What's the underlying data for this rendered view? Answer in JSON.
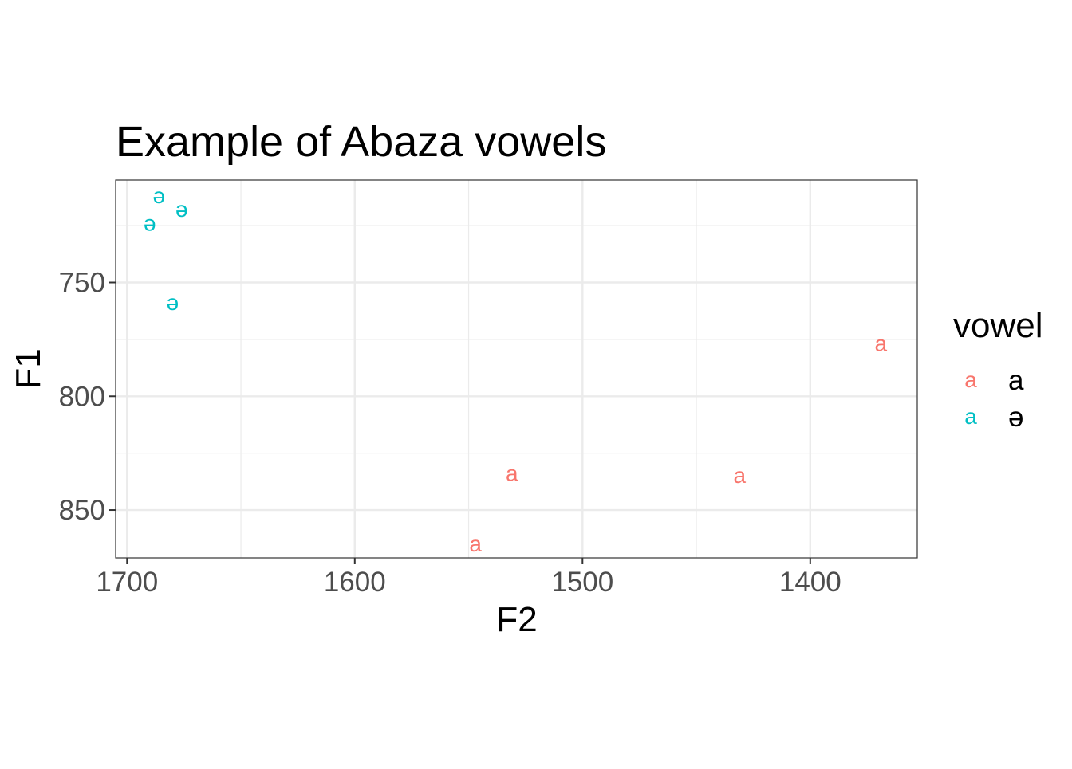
{
  "chart_data": {
    "type": "scatter",
    "title": "Example of Abaza vowels",
    "xlabel": "F2",
    "ylabel": "F1",
    "x_reversed": true,
    "y_reversed": true,
    "xlim": [
      1705,
      1353
    ],
    "ylim": [
      705,
      871
    ],
    "x_major_ticks": [
      1700,
      1600,
      1500,
      1400
    ],
    "x_minor_ticks": [
      1650,
      1550,
      1450
    ],
    "y_major_ticks": [
      750,
      800,
      850
    ],
    "y_minor_ticks": [
      725,
      775,
      825
    ],
    "grid": true,
    "legend_position": "right",
    "legend": {
      "title": "vowel",
      "key_glyph": "a",
      "items": [
        {
          "label": "a",
          "color": "#F8766D"
        },
        {
          "label": "ə",
          "color": "#00BFC4"
        }
      ]
    },
    "series": [
      {
        "label": "a",
        "color": "#F8766D",
        "points": [
          {
            "F2": 1369,
            "F1": 777
          },
          {
            "F2": 1531,
            "F1": 834
          },
          {
            "F2": 1431,
            "F1": 835
          },
          {
            "F2": 1547,
            "F1": 865
          }
        ]
      },
      {
        "label": "ə",
        "color": "#00BFC4",
        "points": [
          {
            "F2": 1686,
            "F1": 712
          },
          {
            "F2": 1676,
            "F1": 718
          },
          {
            "F2": 1690,
            "F1": 724
          },
          {
            "F2": 1680,
            "F1": 759
          }
        ]
      }
    ]
  }
}
